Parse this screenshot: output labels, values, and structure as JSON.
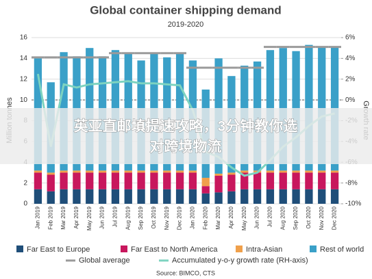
{
  "chart_data": {
    "type": "stacked-bar-line",
    "title": "Global container shipping demand",
    "subtitle": "2019-2020",
    "ylabel": "Million tonnes",
    "y2label": "Growth rate",
    "source": "Source: BIMCO, CTS",
    "categories": [
      "Jan 2019",
      "Feb 2019",
      "Mar 2019",
      "Apr 2019",
      "May 2019",
      "Jun 2019",
      "Jul 2019",
      "Aug 2019",
      "Sep 2019",
      "Oct 2019",
      "Nov 2019",
      "Dec 2019",
      "Jan 2020",
      "Feb 2020",
      "Mar 2020",
      "Apr 2020",
      "May 2020",
      "Jun 2020",
      "Jul 2020",
      "Aug 2020",
      "Sep 2020",
      "Oct 2020",
      "Nov 2020",
      "Dec 2020"
    ],
    "series": [
      {
        "name": "Far East to Europe",
        "color": "#1f4e79",
        "kind": "bar",
        "values": [
          1.4,
          1.2,
          1.4,
          1.4,
          1.4,
          1.4,
          1.4,
          1.4,
          1.4,
          1.4,
          1.4,
          1.4,
          1.4,
          1.0,
          1.1,
          1.2,
          1.4,
          1.4,
          1.4,
          1.4,
          1.4,
          1.4,
          1.4,
          1.4
        ]
      },
      {
        "name": "Far East to North America",
        "color": "#c8175d",
        "kind": "bar",
        "values": [
          1.6,
          1.6,
          1.6,
          1.6,
          1.6,
          1.6,
          1.6,
          1.6,
          1.6,
          1.6,
          1.6,
          1.6,
          1.6,
          0.7,
          1.6,
          1.6,
          1.6,
          1.6,
          1.6,
          1.6,
          1.6,
          1.6,
          1.6,
          1.6
        ]
      },
      {
        "name": "Intra-Asian",
        "color": "#f0a04b",
        "kind": "bar",
        "values": [
          0.2,
          0.2,
          0.2,
          0.2,
          0.2,
          0.2,
          0.2,
          0.2,
          0.2,
          0.2,
          0.2,
          0.2,
          0.2,
          0.8,
          0.2,
          0.2,
          0.2,
          0.2,
          0.2,
          0.2,
          0.2,
          0.2,
          0.2,
          0.2
        ]
      },
      {
        "name": "Rest of world",
        "color": "#3aa0c8",
        "kind": "bar",
        "values": [
          10.8,
          8.7,
          11.4,
          11.0,
          11.8,
          11.0,
          11.6,
          11.3,
          10.6,
          11.3,
          10.9,
          11.3,
          10.6,
          8.5,
          11.1,
          9.3,
          10.1,
          10.5,
          11.6,
          11.8,
          11.5,
          12.1,
          11.9,
          11.9
        ]
      },
      {
        "name": "Global average",
        "color": "#9a9a9a",
        "kind": "step",
        "values": [
          14.1,
          14.1,
          14.1,
          14.1,
          14.1,
          14.1,
          14.5,
          14.5,
          14.5,
          14.5,
          14.5,
          14.5,
          13.1,
          13.1,
          13.1,
          13.1,
          13.1,
          13.1,
          15.1,
          15.1,
          15.1,
          15.1,
          15.1,
          15.1
        ]
      },
      {
        "name": "Accumulated y-o-y growth rate (RH-axis)",
        "color": "#7dd3c0",
        "kind": "line",
        "axis": "y2",
        "values": [
          2.5,
          -4.5,
          1.5,
          1.2,
          1.5,
          1.6,
          1.7,
          1.8,
          1.6,
          1.6,
          1.5,
          1.4,
          -1,
          -5,
          -5.5,
          -6.5,
          -7.3,
          -7,
          -5.8,
          -4.5,
          -3.6,
          -2.5,
          -1.6,
          -1.3
        ]
      }
    ],
    "ylim": [
      0,
      16
    ],
    "yticks": [
      0,
      2,
      4,
      6,
      8,
      10,
      12,
      14,
      16
    ],
    "y2lim": [
      -10,
      6
    ],
    "y2ticks": [
      {
        "value": 6,
        "label": "6%"
      },
      {
        "value": 4,
        "label": "4%"
      },
      {
        "value": 2,
        "label": "2%"
      },
      {
        "value": 0,
        "label": "0%"
      },
      {
        "value": -2,
        "label": "-2%"
      },
      {
        "value": -4,
        "label": "-4%"
      },
      {
        "value": -6,
        "label": "-6%"
      },
      {
        "value": -8,
        "label": "-8%"
      },
      {
        "value": -10,
        "label": "-10%"
      }
    ],
    "grid": true
  },
  "banner": {
    "lines": [
      "英亚直邮填提速攻略，3分钟教你选",
      "对跨境物流"
    ]
  }
}
